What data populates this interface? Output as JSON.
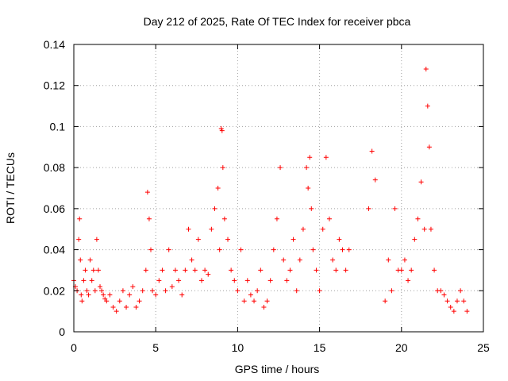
{
  "chart_data": {
    "type": "scatter",
    "title": "Day 212 of 2025, Rate Of TEC Index for receiver pbca",
    "xlabel": "GPS time / hours",
    "ylabel": "ROTI / TECUs",
    "xlim": [
      0,
      25
    ],
    "ylim": [
      0,
      0.14
    ],
    "x_ticks": [
      0,
      5,
      10,
      15,
      20,
      25
    ],
    "x_tick_labels": [
      "0",
      "5",
      "10",
      "15",
      "20",
      "25"
    ],
    "y_ticks": [
      0,
      0.02,
      0.04,
      0.06,
      0.08,
      0.1,
      0.12,
      0.14
    ],
    "y_tick_labels": [
      "0",
      "0.02",
      "0.04",
      "0.06",
      "0.08",
      "0.1",
      "0.12",
      "0.14"
    ],
    "grid": true,
    "marker": "plus",
    "color": "#ff0000",
    "series": [
      {
        "x": [
          0.0,
          0.1,
          0.2,
          0.3,
          0.35,
          0.4,
          0.45,
          0.5,
          0.6,
          0.7,
          0.8,
          0.9,
          1.0,
          1.1,
          1.2,
          1.3,
          1.4,
          1.5,
          1.6,
          1.7,
          1.8,
          1.9,
          2.0,
          2.2,
          2.4,
          2.6,
          2.8,
          3.0,
          3.2,
          3.4,
          3.6,
          3.8,
          4.0,
          4.2,
          4.4,
          4.5,
          4.6,
          4.7,
          4.8,
          5.0,
          5.2,
          5.4,
          5.6,
          5.8,
          6.0,
          6.2,
          6.4,
          6.6,
          6.8,
          7.0,
          7.2,
          7.4,
          7.6,
          7.8,
          8.0,
          8.2,
          8.4,
          8.6,
          8.8,
          8.9,
          9.0,
          9.05,
          9.1,
          9.2,
          9.4,
          9.6,
          9.8,
          10.0,
          10.2,
          10.4,
          10.6,
          10.8,
          11.0,
          11.2,
          11.4,
          11.6,
          11.8,
          12.0,
          12.2,
          12.4,
          12.6,
          12.8,
          13.0,
          13.2,
          13.4,
          13.6,
          13.8,
          14.0,
          14.2,
          14.3,
          14.4,
          14.5,
          14.6,
          14.8,
          15.0,
          15.2,
          15.4,
          15.6,
          15.8,
          16.0,
          16.2,
          16.4,
          16.6,
          16.8,
          18.0,
          18.2,
          18.4,
          19.0,
          19.2,
          19.4,
          19.6,
          19.8,
          20.0,
          20.2,
          20.4,
          20.6,
          20.8,
          21.0,
          21.2,
          21.4,
          21.5,
          21.6,
          21.7,
          21.8,
          22.0,
          22.2,
          22.4,
          22.6,
          22.8,
          23.0,
          23.2,
          23.4,
          23.6,
          23.8,
          24.0
        ],
        "y": [
          0.025,
          0.022,
          0.02,
          0.045,
          0.055,
          0.035,
          0.018,
          0.015,
          0.025,
          0.03,
          0.02,
          0.018,
          0.035,
          0.025,
          0.03,
          0.02,
          0.045,
          0.03,
          0.022,
          0.02,
          0.018,
          0.016,
          0.015,
          0.018,
          0.012,
          0.01,
          0.015,
          0.02,
          0.012,
          0.018,
          0.022,
          0.012,
          0.015,
          0.02,
          0.03,
          0.068,
          0.055,
          0.04,
          0.02,
          0.018,
          0.025,
          0.03,
          0.02,
          0.04,
          0.022,
          0.03,
          0.025,
          0.018,
          0.03,
          0.05,
          0.035,
          0.03,
          0.045,
          0.025,
          0.03,
          0.028,
          0.05,
          0.06,
          0.07,
          0.04,
          0.099,
          0.098,
          0.08,
          0.055,
          0.045,
          0.03,
          0.025,
          0.02,
          0.04,
          0.015,
          0.025,
          0.018,
          0.015,
          0.02,
          0.03,
          0.012,
          0.015,
          0.025,
          0.04,
          0.055,
          0.08,
          0.035,
          0.025,
          0.03,
          0.045,
          0.02,
          0.035,
          0.05,
          0.08,
          0.07,
          0.085,
          0.06,
          0.04,
          0.03,
          0.02,
          0.05,
          0.085,
          0.055,
          0.035,
          0.03,
          0.045,
          0.04,
          0.03,
          0.04,
          0.06,
          0.088,
          0.074,
          0.015,
          0.035,
          0.02,
          0.06,
          0.03,
          0.03,
          0.035,
          0.025,
          0.03,
          0.045,
          0.055,
          0.073,
          0.05,
          0.128,
          0.11,
          0.09,
          0.05,
          0.03,
          0.02,
          0.02,
          0.018,
          0.015,
          0.012,
          0.01,
          0.015,
          0.02,
          0.015,
          0.01
        ]
      }
    ]
  }
}
